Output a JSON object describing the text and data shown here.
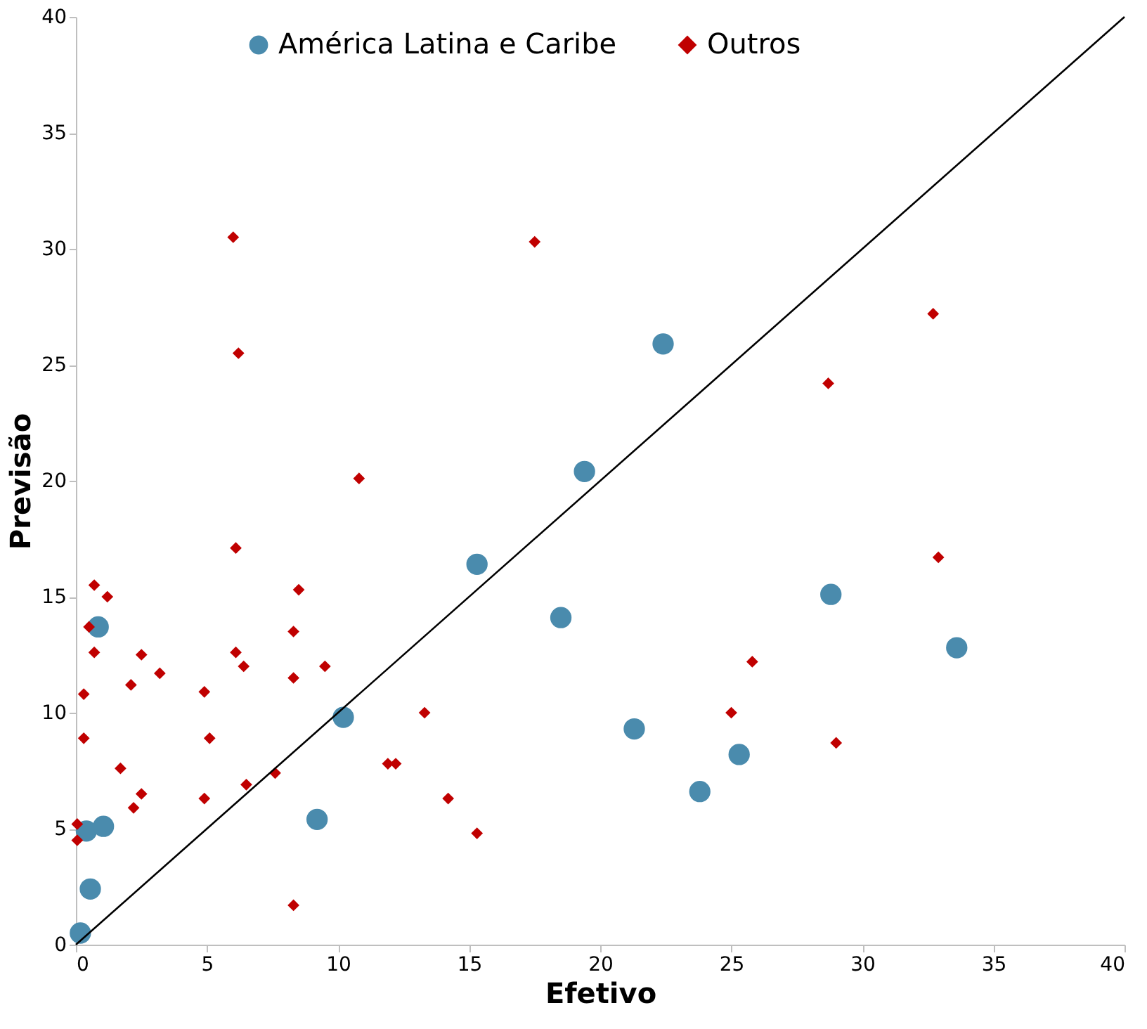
{
  "chart_data": {
    "type": "scatter",
    "xlabel": "Efetivo",
    "ylabel": "Previsão",
    "xlim": [
      0,
      40
    ],
    "ylim": [
      0,
      40
    ],
    "xticks": [
      0,
      5,
      10,
      15,
      20,
      25,
      30,
      35,
      40
    ],
    "yticks": [
      0,
      5,
      10,
      15,
      20,
      25,
      30,
      35,
      40
    ],
    "grid": false,
    "legend": "top",
    "series": [
      {
        "name": "América Latina e Caribe",
        "color": "#4a8bad",
        "marker": "circle",
        "x": [
          0.17,
          0.55,
          0.4,
          1.05,
          0.85,
          9.2,
          10.2,
          15.3,
          18.5,
          19.4,
          21.3,
          22.4,
          23.8,
          25.3,
          28.8,
          33.6
        ],
        "values": [
          0.5,
          2.4,
          4.9,
          5.1,
          13.7,
          5.4,
          9.8,
          16.4,
          14.1,
          20.4,
          9.3,
          25.9,
          6.6,
          8.2,
          15.1,
          12.8
        ]
      },
      {
        "name": "Outros",
        "color": "#c00000",
        "marker": "diamond",
        "x": [
          6.0,
          6.2,
          17.5,
          10.8,
          6.1,
          0.7,
          1.2,
          0.5,
          8.5,
          0.7,
          2.5,
          6.1,
          6.4,
          3.2,
          2.1,
          8.3,
          9.5,
          0.3,
          4.9,
          0.3,
          5.1,
          1.7,
          2.5,
          2.2,
          4.9,
          6.5,
          7.6,
          0.05,
          0.05,
          8.3,
          13.3,
          11.9,
          12.2,
          14.2,
          15.3,
          25.0,
          25.8,
          28.7,
          29.0,
          32.7,
          32.9,
          8.3
        ],
        "values": [
          30.5,
          25.5,
          30.3,
          20.1,
          17.1,
          15.5,
          15.0,
          13.7,
          15.3,
          12.6,
          12.5,
          12.6,
          12.0,
          11.7,
          11.2,
          11.5,
          12.0,
          10.8,
          10.9,
          8.9,
          8.9,
          7.6,
          6.5,
          5.9,
          6.3,
          6.9,
          7.4,
          5.2,
          4.5,
          1.7,
          10.0,
          7.8,
          7.8,
          6.3,
          4.8,
          10.0,
          12.2,
          24.2,
          8.7,
          27.2,
          16.7,
          13.5
        ]
      },
      {
        "type": "line",
        "color": "#000000",
        "marker": "none",
        "line_style": "solid",
        "x": [
          0,
          40
        ],
        "values": [
          0,
          40
        ]
      }
    ]
  }
}
